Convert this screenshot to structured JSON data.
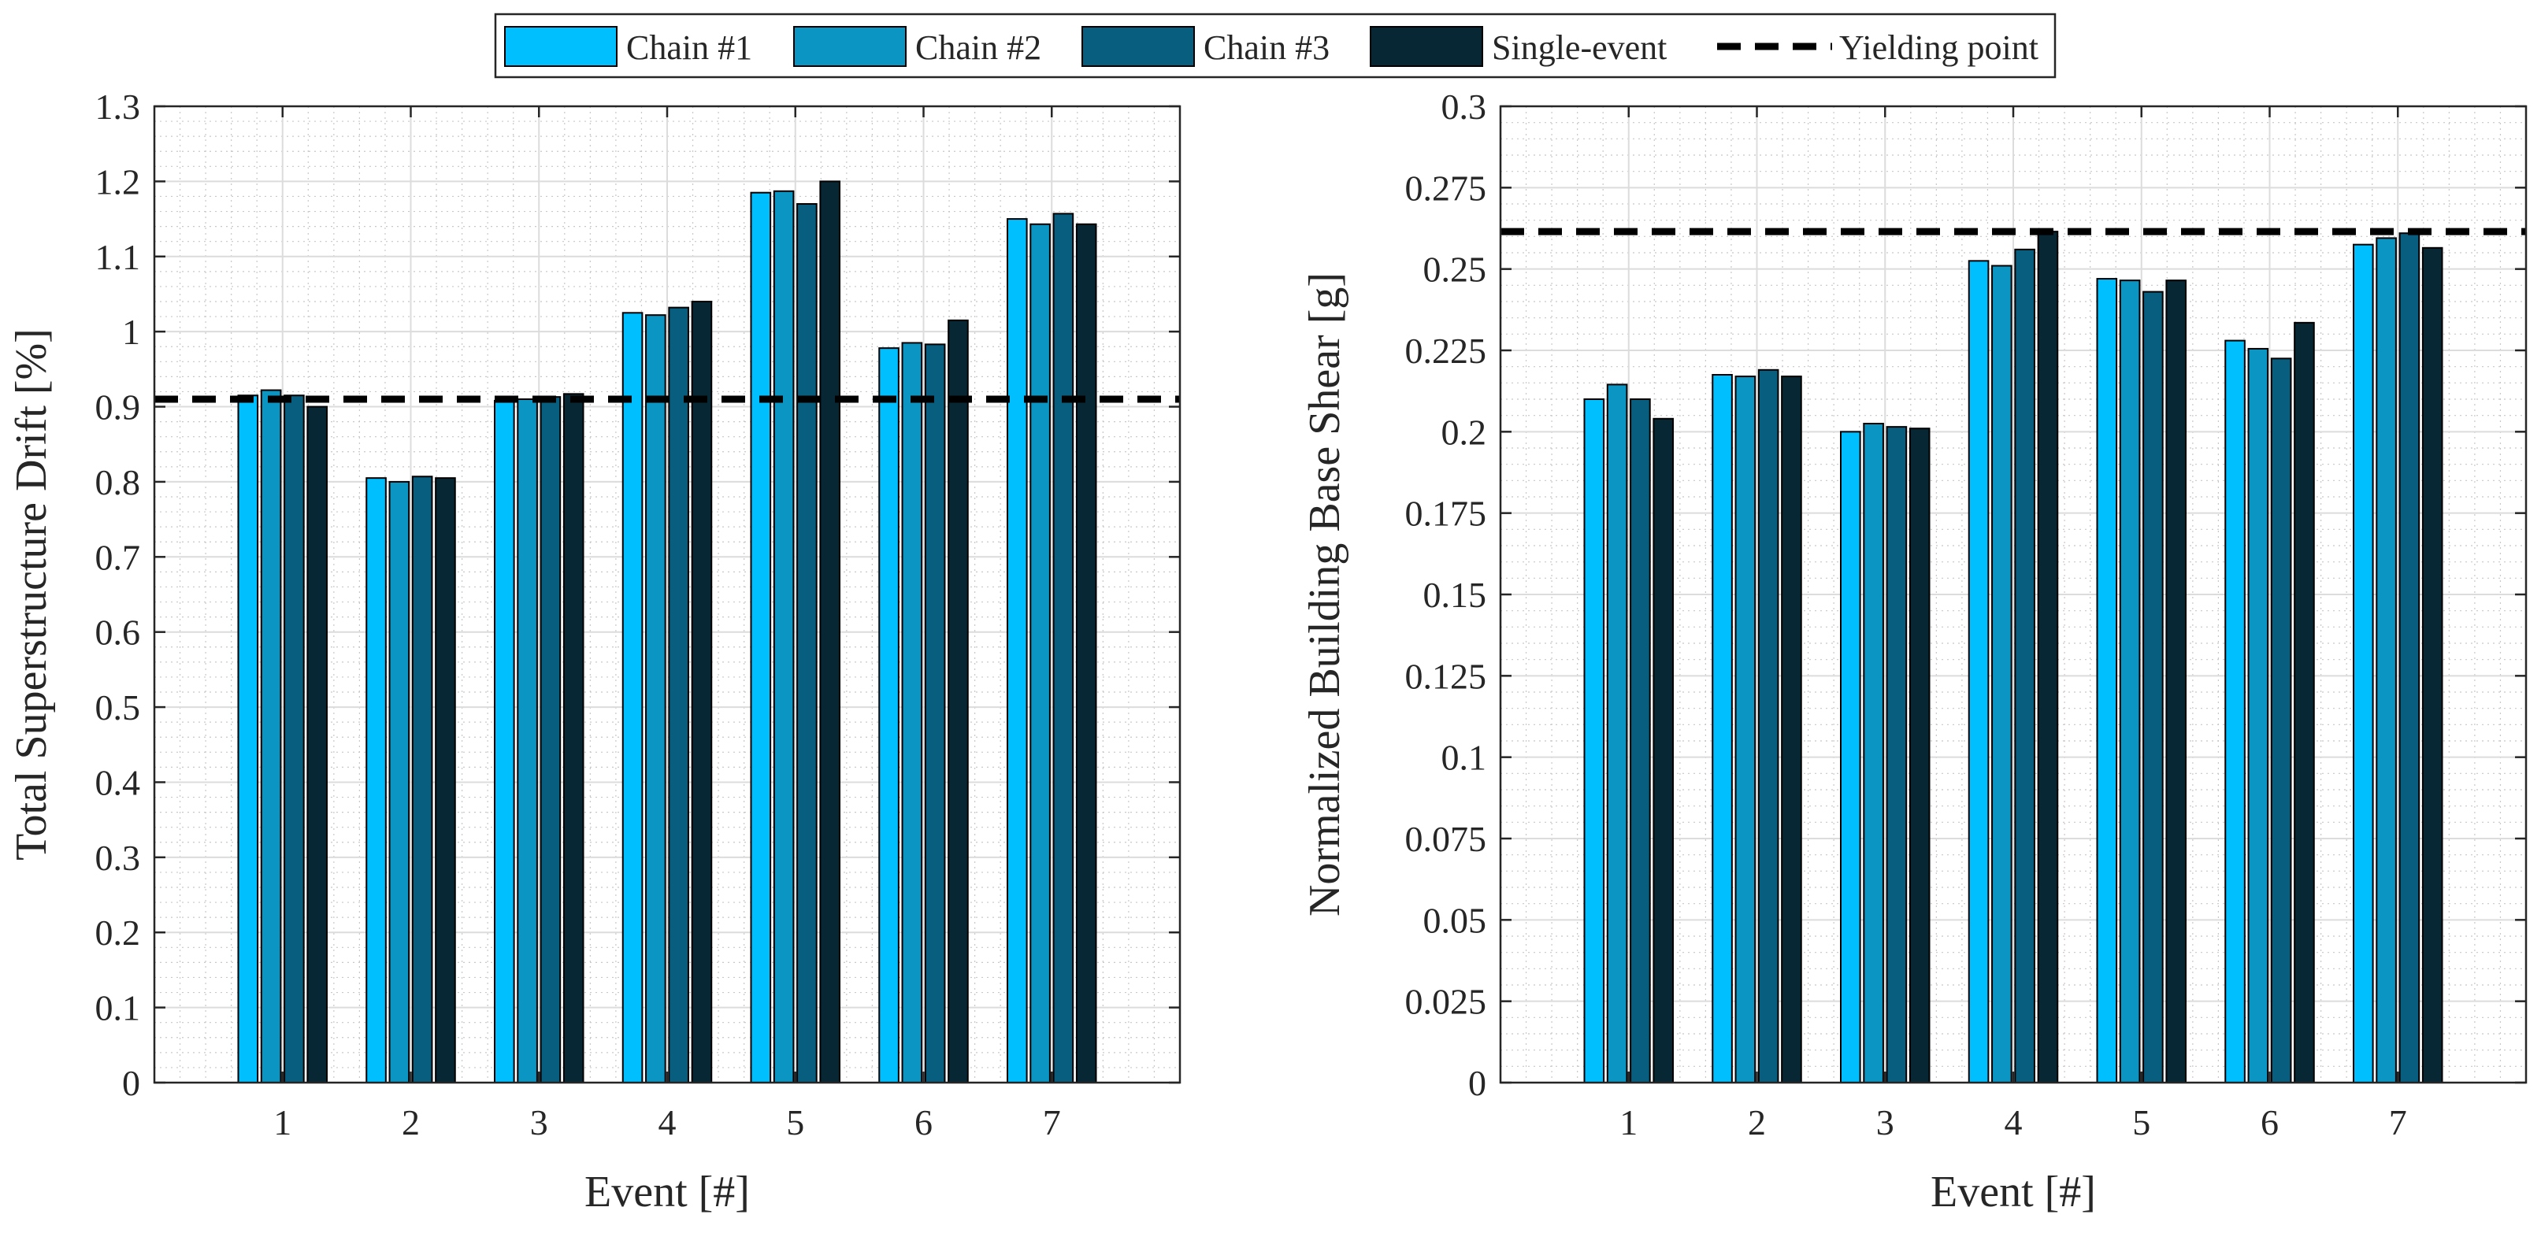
{
  "legend": {
    "entries": [
      {
        "label": "Chain #1",
        "color": "#00BFFF",
        "kind": "bar"
      },
      {
        "label": "Chain #2",
        "color": "#0A95C2",
        "kind": "bar"
      },
      {
        "label": "Chain #3",
        "color": "#075E7E",
        "kind": "bar"
      },
      {
        "label": "Single-event",
        "color": "#062733",
        "kind": "bar"
      },
      {
        "label": "Yielding point",
        "color": "#000000",
        "kind": "dashed-line"
      }
    ]
  },
  "chart_data": [
    {
      "type": "bar",
      "title": "",
      "xlabel": "Event [#]",
      "ylabel": "Total Superstructure Drift [%]",
      "categories": [
        "1",
        "2",
        "3",
        "4",
        "5",
        "6",
        "7"
      ],
      "xlim": [
        0,
        8
      ],
      "ylim": [
        0,
        1.3
      ],
      "yticks": [
        0,
        0.1,
        0.2,
        0.3,
        0.4,
        0.5,
        0.6,
        0.7,
        0.8,
        0.9,
        1,
        1.1,
        1.2,
        1.3
      ],
      "ytick_labels": [
        "0",
        "0.1",
        "0.2",
        "0.3",
        "0.4",
        "0.5",
        "0.6",
        "0.7",
        "0.8",
        "0.9",
        "1",
        "1.1",
        "1.2",
        "1.3"
      ],
      "minor_per_major": 5,
      "grid": true,
      "series": [
        {
          "name": "Chain #1",
          "values": [
            0.915,
            0.805,
            0.908,
            1.025,
            1.185,
            0.978,
            1.15
          ]
        },
        {
          "name": "Chain #2",
          "values": [
            0.922,
            0.8,
            0.91,
            1.022,
            1.187,
            0.985,
            1.143
          ]
        },
        {
          "name": "Chain #3",
          "values": [
            0.915,
            0.807,
            0.913,
            1.032,
            1.17,
            0.983,
            1.157
          ]
        },
        {
          "name": "Single-event",
          "values": [
            0.9,
            0.805,
            0.917,
            1.04,
            1.2,
            1.015,
            1.143
          ]
        }
      ],
      "reference_line": {
        "name": "Yielding point",
        "y": 0.91
      }
    },
    {
      "type": "bar",
      "title": "",
      "xlabel": "Event [#]",
      "ylabel": "Normalized Building Base Shear [g]",
      "categories": [
        "1",
        "2",
        "3",
        "4",
        "5",
        "6",
        "7"
      ],
      "xlim": [
        0,
        8
      ],
      "ylim": [
        0,
        0.3
      ],
      "yticks": [
        0,
        0.025,
        0.05,
        0.075,
        0.1,
        0.125,
        0.15,
        0.175,
        0.2,
        0.225,
        0.25,
        0.275,
        0.3
      ],
      "ytick_labels": [
        "0",
        "0.025",
        "0.05",
        "0.075",
        "0.1",
        "0.125",
        "0.15",
        "0.175",
        "0.2",
        "0.225",
        "0.25",
        "0.275",
        "0.3"
      ],
      "minor_per_major": 5,
      "grid": true,
      "series": [
        {
          "name": "Chain #1",
          "values": [
            0.21,
            0.2175,
            0.2,
            0.2525,
            0.247,
            0.228,
            0.2575
          ]
        },
        {
          "name": "Chain #2",
          "values": [
            0.2145,
            0.217,
            0.2025,
            0.251,
            0.2465,
            0.2255,
            0.2595
          ]
        },
        {
          "name": "Chain #3",
          "values": [
            0.21,
            0.219,
            0.2015,
            0.256,
            0.243,
            0.2225,
            0.261
          ]
        },
        {
          "name": "Single-event",
          "values": [
            0.204,
            0.217,
            0.201,
            0.2615,
            0.2465,
            0.2335,
            0.2565
          ]
        }
      ],
      "reference_line": {
        "name": "Yielding point",
        "y": 0.2615
      }
    }
  ]
}
